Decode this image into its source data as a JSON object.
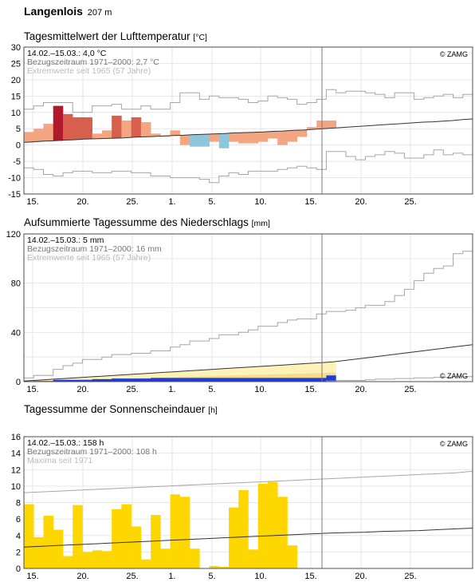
{
  "station": {
    "name": "Langenlois",
    "altitude": "207 m"
  },
  "x_ticks": [
    "15.",
    "20.",
    "25.",
    "1.",
    "5.",
    "10.",
    "15.",
    "20.",
    "25."
  ],
  "copyright": "© ZAMG",
  "chart_data": [
    {
      "type": "bar",
      "title": "Tagesmittelwert der Lufttemperatur",
      "unit": "[°C]",
      "info": [
        "14.02.–15.03.: 4,0 °C",
        "Bezugszeitraum 1971–2000: 2,7 °C",
        "Extremwerte seit 1965 (57 Jahre)"
      ],
      "y_ticks": [
        "30",
        "25",
        "20",
        "15",
        "10",
        "5",
        "0",
        "-5",
        "-10",
        "-15"
      ],
      "ylim": [
        -15,
        30
      ],
      "series": [
        {
          "name": "Tagesmittel",
          "values": [
            4,
            5,
            6.5,
            12,
            9.5,
            8.5,
            8.5,
            3.5,
            4.5,
            9,
            7.5,
            8.5,
            7,
            3.5,
            2.5,
            4.5,
            0,
            -0.5,
            -0.5,
            1,
            -1,
            1,
            0.5,
            0.5,
            1,
            2,
            0,
            1,
            2.5,
            5.5,
            7.5,
            7.5
          ]
        },
        {
          "name": "Bezugszeitraum 1971–2000",
          "values": [
            0.8,
            1.0,
            1.2,
            1.3,
            1.5,
            1.6,
            1.8,
            1.9,
            2.0,
            2.1,
            2.2,
            2.4,
            2.5,
            2.6,
            2.8,
            2.9,
            3.0,
            3.2,
            3.3,
            3.4,
            3.5,
            3.7,
            3.8,
            3.9,
            4.0,
            4.2,
            4.3,
            4.5,
            4.6,
            4.8,
            5.0,
            5.2,
            5.4,
            5.6,
            5.8,
            6.0,
            6.2,
            6.4,
            6.6,
            6.8,
            7.0,
            7.1,
            7.3,
            7.5,
            7.8,
            8.0
          ]
        },
        {
          "name": "Extremwerte max",
          "values": [
            11,
            12,
            13,
            13,
            13,
            10,
            10,
            12,
            12,
            12.5,
            11,
            11,
            12,
            11,
            11,
            13,
            16,
            16,
            14,
            15,
            14.5,
            14.5,
            14,
            13,
            13.5,
            15,
            14.5,
            14,
            12.5,
            13,
            14,
            17,
            16,
            16.5,
            16.5,
            16,
            15.5,
            14.5,
            16,
            16,
            14,
            14.5,
            15,
            15.5,
            14.5,
            15.5
          ]
        },
        {
          "name": "Extremwerte min",
          "values": [
            -7,
            -7.5,
            -9,
            -9.5,
            -8.5,
            -8,
            -8,
            -8.5,
            -8.5,
            -8,
            -8,
            -8.5,
            -8.5,
            -9.5,
            -9.5,
            -10,
            -10,
            -10,
            -10.5,
            -11.5,
            -9.5,
            -8.5,
            -9,
            -8,
            -8,
            -8,
            -7.5,
            -7,
            -6.5,
            -7,
            -7.5,
            -2,
            -2,
            -3.5,
            -4.5,
            -3.5,
            -3,
            -2,
            -2.5,
            -4,
            -4,
            -3,
            -1.5,
            -3,
            -2.5,
            -3
          ]
        }
      ]
    },
    {
      "type": "area",
      "title": "Aufsummierte Tagessumme des Niederschlags",
      "unit": "[mm]",
      "info": [
        "14.02.–15.03.: 5 mm",
        "Bezugszeitraum 1971–2000: 16 mm",
        "Extremwerte seit 1965 (57 Jahre)"
      ],
      "y_ticks": [
        "120",
        "80",
        "40",
        "0"
      ],
      "ylim": [
        0,
        120
      ],
      "series": [
        {
          "name": "Aufsummiert",
          "values": [
            0,
            0.5,
            0.5,
            1.5,
            1.5,
            1.5,
            1.5,
            2,
            2,
            2.5,
            2.5,
            2.5,
            2.5,
            3,
            3,
            3,
            3,
            3,
            3,
            3,
            3,
            3,
            3,
            3,
            3,
            3,
            3,
            3,
            3,
            3,
            3,
            5
          ]
        },
        {
          "name": "Bezugszeitraum 1971–2000",
          "values": [
            0.5,
            1,
            1.5,
            2,
            2.5,
            3,
            3.5,
            4,
            4.5,
            5,
            5.5,
            6,
            6.5,
            7,
            7.5,
            8,
            8.5,
            9,
            9.5,
            10,
            10.5,
            11,
            11.5,
            12,
            12.5,
            13,
            13.5,
            14,
            14.5,
            15,
            15.5,
            16,
            17,
            18,
            19,
            20,
            21,
            22,
            23,
            24,
            25,
            26,
            27,
            28,
            29,
            30
          ]
        },
        {
          "name": "Extremwerte max",
          "values": [
            3,
            5,
            5,
            10,
            13,
            15,
            18,
            18,
            20,
            22,
            22,
            23,
            23,
            25,
            25,
            28,
            30,
            33,
            33,
            35,
            38,
            38,
            40,
            42,
            45,
            45,
            48,
            50,
            51,
            51,
            55,
            57,
            57,
            58,
            60,
            62,
            62,
            65,
            70,
            75,
            82,
            88,
            92,
            94,
            104,
            106
          ]
        },
        {
          "name": "Extremwerte min",
          "values": [
            0,
            0,
            0,
            0,
            0,
            0,
            0,
            0,
            0,
            0,
            0,
            0,
            0,
            0,
            0,
            0,
            0,
            0,
            0,
            0,
            0,
            0,
            0,
            0,
            0,
            0,
            0,
            0,
            0,
            0,
            0,
            0.5,
            1,
            1,
            1,
            1.5,
            2,
            2,
            2.5,
            2.5,
            3,
            3,
            3.5,
            3.5,
            4,
            4
          ]
        }
      ]
    },
    {
      "type": "bar",
      "title": "Tagessumme der Sonnenscheindauer",
      "unit": "[h]",
      "info": [
        "14.02.–15.03.: 158 h",
        "Bezugszeitraum 1971–2000: 108 h",
        "Maxima seit 1971"
      ],
      "y_ticks": [
        "16",
        "14",
        "12",
        "10",
        "8",
        "6",
        "4",
        "2",
        "0"
      ],
      "ylim": [
        0,
        16
      ],
      "series": [
        {
          "name": "Sonnenscheindauer",
          "values": [
            7.8,
            3.8,
            6.4,
            4.7,
            1.5,
            7.7,
            2,
            2.2,
            2.1,
            7.2,
            7.8,
            5.1,
            1.1,
            6.5,
            2.4,
            9,
            8.7,
            2.4,
            0,
            0.3,
            0.2,
            7.4,
            9.5,
            2.3,
            10.3,
            10.5,
            8.7,
            2.8
          ]
        },
        {
          "name": "Bezugszeitraum 1971–2000",
          "values": [
            2.6,
            2.7,
            2.8,
            2.9,
            3.0,
            3.1,
            3.2,
            3.3,
            3.4,
            3.5,
            3.6,
            3.7,
            3.8,
            3.9,
            4.0,
            4.1,
            4.2,
            4.3,
            4.35,
            4.4,
            4.5,
            4.55,
            4.6,
            4.7,
            4.8,
            4.9
          ]
        },
        {
          "name": "Maxima",
          "values": [
            9.2,
            9.3,
            9.4,
            9.5,
            9.6,
            9.7,
            9.8,
            9.9,
            10.0,
            10.1,
            10.2,
            10.3,
            10.4,
            10.5,
            10.6,
            10.7,
            10.8,
            10.9,
            11.0,
            11.1,
            11.2,
            11.3,
            11.4,
            11.5,
            11.6,
            11.8
          ]
        }
      ]
    }
  ]
}
